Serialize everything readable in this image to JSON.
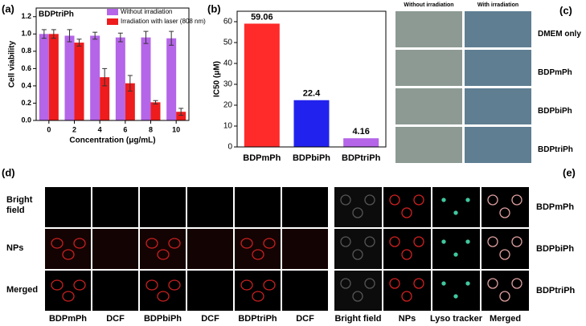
{
  "chart_data": [
    {
      "type": "bar",
      "panel": "(a)",
      "title": "BDPtriPh",
      "ylabel": "Cell viability",
      "xlabel": "Concentration (μg/mL)",
      "categories": [
        "0",
        "2",
        "4",
        "6",
        "8",
        "10"
      ],
      "series": [
        {
          "name": "Without irradiation",
          "color": "#b565e8",
          "values": [
            1.0,
            0.98,
            0.98,
            0.96,
            0.96,
            0.95
          ],
          "errors": [
            0.05,
            0.07,
            0.04,
            0.05,
            0.07,
            0.08
          ]
        },
        {
          "name": "Irradiation with laser (808 nm)",
          "color": "#ee1c1c",
          "values": [
            1.0,
            0.9,
            0.5,
            0.43,
            0.21,
            0.1
          ],
          "errors": [
            0.05,
            0.04,
            0.1,
            0.09,
            0.02,
            0.04
          ]
        }
      ],
      "ylim": [
        0,
        1.3
      ],
      "yticks": [
        {
          "value": 0,
          "label": "0.0"
        },
        {
          "value": 0.2,
          "label": "0.2"
        },
        {
          "value": 0.4,
          "label": "0.4"
        },
        {
          "value": 0.6,
          "label": "0.6"
        },
        {
          "value": 0.8,
          "label": "0.8"
        },
        {
          "value": 1.0,
          "label": "1.0"
        },
        {
          "value": 1.2,
          "label": "1.2"
        }
      ],
      "legend": "top-right"
    },
    {
      "type": "bar",
      "panel": "(b)",
      "ylabel": "IC50 (μM)",
      "categories": [
        "BDPmPh",
        "BDPbiPh",
        "BDPtriPh"
      ],
      "values": [
        59.06,
        22.4,
        4.16
      ],
      "colors": [
        "#ff2a2a",
        "#2222ee",
        "#b565e8"
      ],
      "ylim": [
        0,
        65
      ],
      "yticks": [
        0,
        10,
        20,
        30,
        40,
        50,
        60
      ]
    }
  ],
  "panels": {
    "c": {
      "label": "(c)",
      "columns": [
        "Without irradiation",
        "With irradiation"
      ],
      "rows": [
        "DMEM only",
        "BDPmPh",
        "BDPbiPh",
        "BDPtriPh"
      ]
    },
    "d": {
      "label": "(d)",
      "rows": [
        "Bright field",
        "NPs",
        "Merged"
      ],
      "columns": [
        "BDPmPh",
        "DCF",
        "BDPbiPh",
        "DCF",
        "BDPtriPh",
        "DCF"
      ]
    },
    "e": {
      "label": "(e)",
      "rows": [
        "BDPmPh",
        "BDPbiPh",
        "BDPtriPh"
      ],
      "columns": [
        "Bright field",
        "NPs",
        "Lyso tracker",
        "Merged"
      ]
    }
  }
}
